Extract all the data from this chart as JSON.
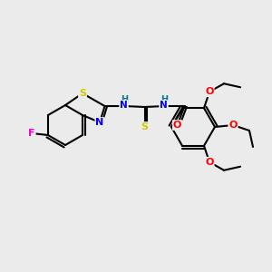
{
  "bg_color": "#ebebeb",
  "bond_color": "#000000",
  "atom_colors": {
    "F": "#ff00cc",
    "S": "#cccc00",
    "N": "#0000ff",
    "O": "#ff0000",
    "C": "#000000",
    "H": "#008080"
  },
  "figsize": [
    3.0,
    3.0
  ],
  "dpi": 100
}
